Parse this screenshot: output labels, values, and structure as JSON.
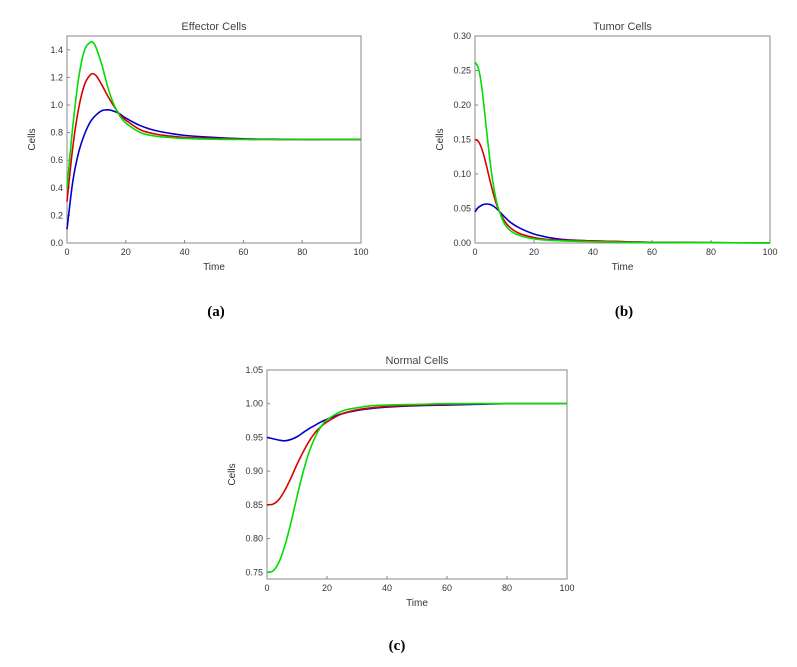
{
  "charts": [
    {
      "id": "a",
      "caption": "(a)",
      "chart_data": {
        "type": "line",
        "title": "Effector Cells",
        "xlabel": "Time",
        "ylabel": "Cells",
        "xlim": [
          0,
          100
        ],
        "ylim": [
          0,
          1.5
        ],
        "xticks": [
          0,
          20,
          40,
          60,
          80,
          100
        ],
        "xtick_labels": [
          "0",
          "20",
          "40",
          "60",
          "80",
          "100"
        ],
        "yticks": [
          0,
          0.2,
          0.4,
          0.6,
          0.8,
          1.0,
          1.2,
          1.4
        ],
        "ytick_labels": [
          "0.0",
          "0.2",
          "0.4",
          "0.6",
          "0.8",
          "1.0",
          "1.2",
          "1.4"
        ],
        "grid": false,
        "series": [
          {
            "color": "#0000cc",
            "x": [
              0,
              2,
              4,
              6,
              8,
              10,
              12,
              14,
              16,
              18,
              20,
              25,
              30,
              35,
              40,
              50,
              60,
              70,
              80,
              90,
              100
            ],
            "y": [
              0.1,
              0.45,
              0.66,
              0.79,
              0.88,
              0.93,
              0.96,
              0.965,
              0.955,
              0.935,
              0.905,
              0.85,
              0.815,
              0.795,
              0.78,
              0.765,
              0.755,
              0.752,
              0.75,
              0.75,
              0.75
            ]
          },
          {
            "color": "#dd0000",
            "x": [
              0,
              2,
              4,
              6,
              8,
              9,
              10,
              12,
              14,
              16,
              18,
              20,
              25,
              30,
              35,
              40,
              50,
              60,
              70,
              80,
              90,
              100
            ],
            "y": [
              0.3,
              0.7,
              0.98,
              1.15,
              1.22,
              1.225,
              1.21,
              1.14,
              1.06,
              0.99,
              0.93,
              0.89,
              0.82,
              0.79,
              0.775,
              0.765,
              0.757,
              0.752,
              0.75,
              0.75,
              0.75,
              0.75
            ]
          },
          {
            "color": "#00dd00",
            "x": [
              0,
              2,
              4,
              6,
              8,
              9,
              10,
              12,
              14,
              16,
              18,
              20,
              25,
              30,
              35,
              40,
              50,
              60,
              70,
              80,
              90,
              100
            ],
            "y": [
              0.4,
              0.85,
              1.2,
              1.4,
              1.455,
              1.45,
              1.41,
              1.28,
              1.12,
              1.0,
              0.92,
              0.87,
              0.8,
              0.775,
              0.765,
              0.758,
              0.752,
              0.75,
              0.75,
              0.75,
              0.75,
              0.75
            ]
          }
        ]
      }
    },
    {
      "id": "b",
      "caption": "(b)",
      "chart_data": {
        "type": "line",
        "title": "Tumor Cells",
        "xlabel": "Time",
        "ylabel": "Cells",
        "xlim": [
          0,
          100
        ],
        "ylim": [
          0,
          0.3
        ],
        "xticks": [
          0,
          20,
          40,
          60,
          80,
          100
        ],
        "xtick_labels": [
          "0",
          "20",
          "40",
          "60",
          "80",
          "100"
        ],
        "yticks": [
          0,
          0.05,
          0.1,
          0.15,
          0.2,
          0.25,
          0.3
        ],
        "ytick_labels": [
          "0.00",
          "0.05",
          "0.10",
          "0.15",
          "0.20",
          "0.25",
          "0.30"
        ],
        "grid": false,
        "series": [
          {
            "color": "#0000cc",
            "x": [
              0,
              1,
              2,
              3,
              4,
              5,
              6,
              7,
              8,
              10,
              12,
              15,
              20,
              25,
              30,
              40,
              50,
              60,
              80,
              100
            ],
            "y": [
              0.045,
              0.051,
              0.054,
              0.056,
              0.0565,
              0.056,
              0.054,
              0.051,
              0.047,
              0.038,
              0.03,
              0.022,
              0.013,
              0.008,
              0.005,
              0.003,
              0.002,
              0.001,
              0.0005,
              0.0002
            ]
          },
          {
            "color": "#dd0000",
            "x": [
              0,
              1,
              2,
              3,
              4,
              5,
              6,
              7,
              8,
              10,
              12,
              15,
              20,
              25,
              30,
              40,
              50,
              60,
              80,
              100
            ],
            "y": [
              0.15,
              0.148,
              0.14,
              0.127,
              0.11,
              0.092,
              0.075,
              0.06,
              0.048,
              0.032,
              0.022,
              0.014,
              0.008,
              0.005,
              0.004,
              0.003,
              0.002,
              0.001,
              0.0005,
              0.0002
            ]
          },
          {
            "color": "#00dd00",
            "x": [
              0,
              1,
              2,
              3,
              4,
              5,
              6,
              7,
              8,
              10,
              12,
              15,
              20,
              25,
              30,
              40,
              50,
              60,
              80,
              100
            ],
            "y": [
              0.262,
              0.255,
              0.235,
              0.2,
              0.16,
              0.122,
              0.09,
              0.066,
              0.049,
              0.028,
              0.018,
              0.011,
              0.006,
              0.004,
              0.003,
              0.002,
              0.001,
              0.0008,
              0.0004,
              0.0002
            ]
          }
        ]
      }
    },
    {
      "id": "c",
      "caption": "(c)",
      "chart_data": {
        "type": "line",
        "title": "Normal Cells",
        "xlabel": "Time",
        "ylabel": "Cells",
        "xlim": [
          0,
          100
        ],
        "ylim": [
          0.74,
          1.05
        ],
        "xticks": [
          0,
          20,
          40,
          60,
          80,
          100
        ],
        "xtick_labels": [
          "0",
          "20",
          "40",
          "60",
          "80",
          "100"
        ],
        "yticks": [
          0.75,
          0.8,
          0.85,
          0.9,
          0.95,
          1.0,
          1.05
        ],
        "ytick_labels": [
          "0.75",
          "0.80",
          "0.85",
          "0.90",
          "0.95",
          "1.00",
          "1.05"
        ],
        "grid": false,
        "series": [
          {
            "color": "#0000cc",
            "x": [
              0,
              2,
              4,
              6,
              8,
              10,
              12,
              14,
              16,
              18,
              20,
              25,
              30,
              35,
              40,
              50,
              60,
              70,
              80,
              90,
              100
            ],
            "y": [
              0.95,
              0.948,
              0.946,
              0.945,
              0.947,
              0.951,
              0.957,
              0.963,
              0.968,
              0.973,
              0.977,
              0.985,
              0.99,
              0.993,
              0.995,
              0.997,
              0.998,
              0.999,
              1.0,
              1.0,
              1.0
            ]
          },
          {
            "color": "#dd0000",
            "x": [
              0,
              2,
              4,
              6,
              8,
              10,
              12,
              14,
              16,
              18,
              20,
              25,
              30,
              35,
              40,
              50,
              60,
              70,
              80,
              90,
              100
            ],
            "y": [
              0.85,
              0.851,
              0.858,
              0.872,
              0.89,
              0.91,
              0.928,
              0.944,
              0.957,
              0.966,
              0.973,
              0.985,
              0.991,
              0.994,
              0.996,
              0.998,
              0.999,
              1.0,
              1.0,
              1.0,
              1.0
            ]
          },
          {
            "color": "#00dd00",
            "x": [
              0,
              2,
              4,
              6,
              8,
              10,
              12,
              14,
              16,
              18,
              20,
              25,
              30,
              35,
              40,
              50,
              60,
              70,
              80,
              90,
              100
            ],
            "y": [
              0.75,
              0.752,
              0.765,
              0.79,
              0.824,
              0.862,
              0.898,
              0.928,
              0.95,
              0.966,
              0.976,
              0.989,
              0.994,
              0.997,
              0.998,
              0.999,
              1.0,
              1.0,
              1.0,
              1.0,
              1.0
            ]
          }
        ]
      }
    }
  ]
}
